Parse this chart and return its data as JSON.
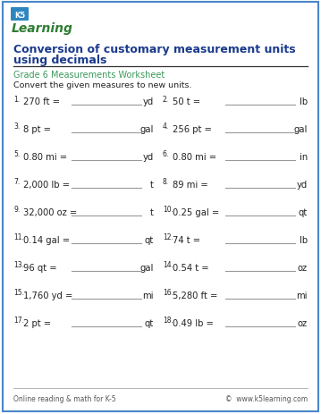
{
  "title_line1": "Conversion of customary measurement units",
  "title_line2": "using decimals",
  "subtitle": "Grade 6 Measurements Worksheet",
  "instruction": "Convert the given measures to new units.",
  "problems": [
    {
      "num": "1.",
      "left": "270 ft =",
      "right_unit": "yd"
    },
    {
      "num": "2.",
      "left": "50 t =",
      "right_unit": "lb"
    },
    {
      "num": "3.",
      "left": "8 pt =",
      "right_unit": "gal"
    },
    {
      "num": "4.",
      "left": "256 pt =",
      "right_unit": "gal"
    },
    {
      "num": "5.",
      "left": "0.80 mi =",
      "right_unit": "yd"
    },
    {
      "num": "6.",
      "left": "0.80 mi =",
      "right_unit": "in"
    },
    {
      "num": "7.",
      "left": "2,000 lb =",
      "right_unit": "t"
    },
    {
      "num": "8.",
      "left": "89 mi =",
      "right_unit": "yd"
    },
    {
      "num": "9.",
      "left": "32,000 oz =",
      "right_unit": "t"
    },
    {
      "num": "10.",
      "left": "0.25 gal =",
      "right_unit": "qt"
    },
    {
      "num": "11.",
      "left": "0.14 gal =",
      "right_unit": "qt"
    },
    {
      "num": "12.",
      "left": "74 t =",
      "right_unit": "lb"
    },
    {
      "num": "13.",
      "left": "96 qt =",
      "right_unit": "gal"
    },
    {
      "num": "14.",
      "left": "0.54 t =",
      "right_unit": "oz"
    },
    {
      "num": "15.",
      "left": "1,760 yd =",
      "right_unit": "mi"
    },
    {
      "num": "16.",
      "left": "5,280 ft =",
      "right_unit": "mi"
    },
    {
      "num": "17.",
      "left": "2 pt =",
      "right_unit": "qt"
    },
    {
      "num": "18.",
      "left": "0.49 lb =",
      "right_unit": "oz"
    }
  ],
  "footer_left": "Online reading & math for K-5",
  "footer_right": "©  www.k5learning.com",
  "border_color": "#4a86c8",
  "title_color": "#1a3a8c",
  "subtitle_color": "#3a9a5c",
  "text_color": "#222222",
  "line_color": "#999999",
  "footer_color": "#555555",
  "bg_color": "#ffffff",
  "logo_k5_color": "#ffffff",
  "logo_k5_bg": "#2e86c1",
  "logo_learn_color": "#2e7d32"
}
